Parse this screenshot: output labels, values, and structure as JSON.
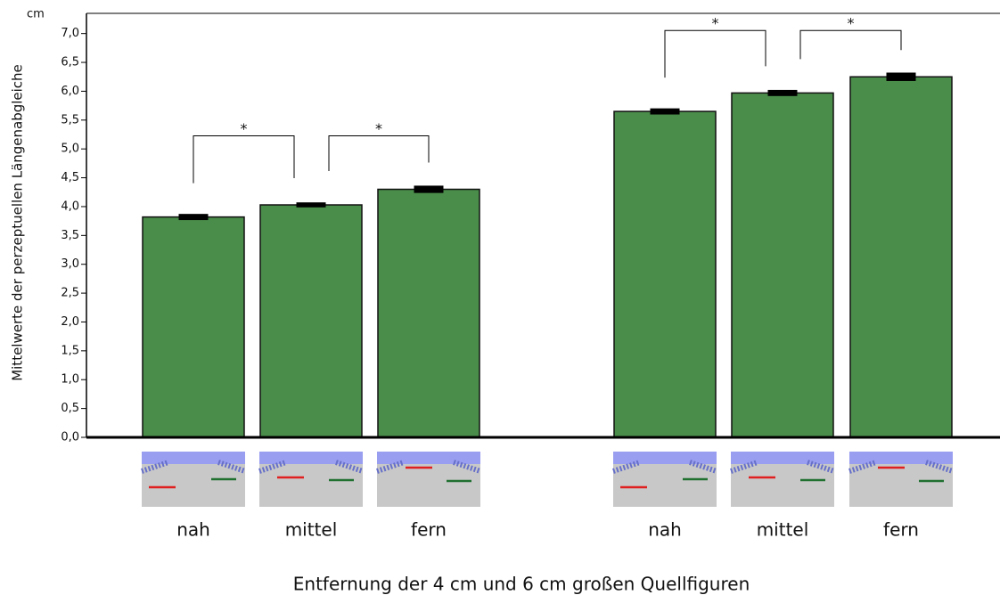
{
  "chart_data": {
    "type": "bar",
    "y_label": "Mittelwerte der perzeptuellen Längenabgleiche",
    "y_unit": "cm",
    "x_label": "Entfernung der 4 cm und 6 cm großen Quellfiguren",
    "categories": [
      "nah",
      "mittel",
      "fern",
      "nah",
      "mittel",
      "fern"
    ],
    "values": [
      3.82,
      4.03,
      4.3,
      5.65,
      5.97,
      6.25
    ],
    "errors": [
      0.03,
      0.02,
      0.04,
      0.03,
      0.03,
      0.05
    ],
    "color": "#4a8c4a",
    "annotations": [
      "*",
      "*",
      "*",
      "*"
    ],
    "ylim": [
      0,
      7.35
    ],
    "yticks": [
      {
        "value": 0,
        "label": "0,0"
      },
      {
        "value": 0.5,
        "label": "0,5"
      },
      {
        "value": 1,
        "label": "1,0"
      },
      {
        "value": 1.5,
        "label": "1,5"
      },
      {
        "value": 2,
        "label": "2,0"
      },
      {
        "value": 2.5,
        "label": "2,5"
      },
      {
        "value": 3,
        "label": "3,0"
      },
      {
        "value": 3.5,
        "label": "3,5"
      },
      {
        "value": 4,
        "label": "4,0"
      },
      {
        "value": 4.5,
        "label": "4,5"
      },
      {
        "value": 5,
        "label": "5,0"
      },
      {
        "value": 5.5,
        "label": "5,5"
      },
      {
        "value": 6,
        "label": "6,0"
      },
      {
        "value": 6.5,
        "label": "6,5"
      },
      {
        "value": 7,
        "label": "7,0"
      }
    ]
  }
}
